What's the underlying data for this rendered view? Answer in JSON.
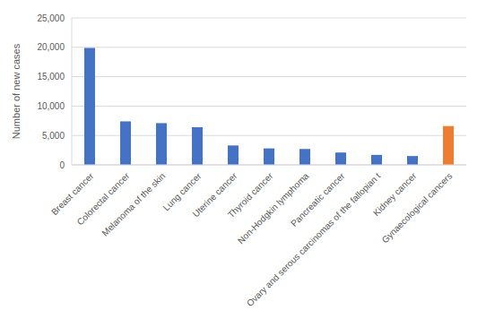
{
  "chart_data": {
    "type": "bar",
    "y_label": "Number of new cases",
    "categories": [
      "Breast cancer",
      "Colorectal cancer",
      "Melanoma of the skin",
      "Lung cancer",
      "Uterine cancer",
      "Thyroid cancer",
      "Non-Hodgkin lymphoma",
      "Pancreatic cancer",
      "Ovary and serous carcinomas of the fallopian t",
      "Kidney cancer",
      "Gynaecological cancers"
    ],
    "values": [
      19900,
      7400,
      7100,
      6400,
      3300,
      2800,
      2700,
      2100,
      1700,
      1500,
      6600
    ],
    "colors": [
      "#4472c4",
      "#4472c4",
      "#4472c4",
      "#4472c4",
      "#4472c4",
      "#4472c4",
      "#4472c4",
      "#4472c4",
      "#4472c4",
      "#4472c4",
      "#ed7d31"
    ],
    "ylim": [
      0,
      25000
    ],
    "yticks": [
      0,
      {
        "value": 5000,
        "label": "5,000"
      },
      {
        "value": 10000,
        "label": "10,000"
      },
      {
        "value": 15000,
        "label": "15,000"
      },
      {
        "value": 20000,
        "label": "20,000"
      },
      {
        "value": 25000,
        "label": "25,000"
      }
    ],
    "grid": true
  }
}
